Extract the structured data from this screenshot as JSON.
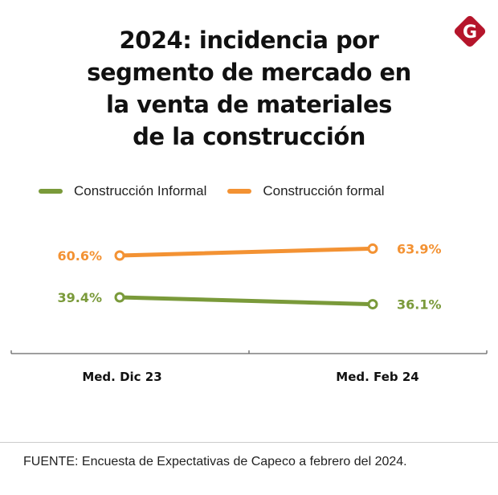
{
  "title": "2024: incidencia por\nsegmento de mercado en\nla venta de materiales\nde la construcción",
  "logo": {
    "icon": "g-diamond-logo",
    "letter": "G",
    "color": "#b5152b"
  },
  "source": "FUENTE: Encuesta de Expectativas de Capeco a febrero del 2024.",
  "chart_data": {
    "type": "line",
    "title": "2024: incidencia por segmento de mercado en la venta de materiales de la construcción",
    "categories": [
      "Med. Dic 23",
      "Med. Feb 24"
    ],
    "series": [
      {
        "name": "Construcción Informal",
        "values": [
          39.4,
          36.1
        ],
        "labels": [
          "39.4%",
          "36.1%"
        ],
        "color": "#7a9a3a"
      },
      {
        "name": "Construcción formal",
        "values": [
          60.6,
          63.9
        ],
        "labels": [
          "60.6%",
          "63.9%"
        ],
        "color": "#f39233"
      }
    ],
    "xlabel": "",
    "ylabel": "",
    "unit": "%",
    "grid": false,
    "legend": "top-left"
  }
}
